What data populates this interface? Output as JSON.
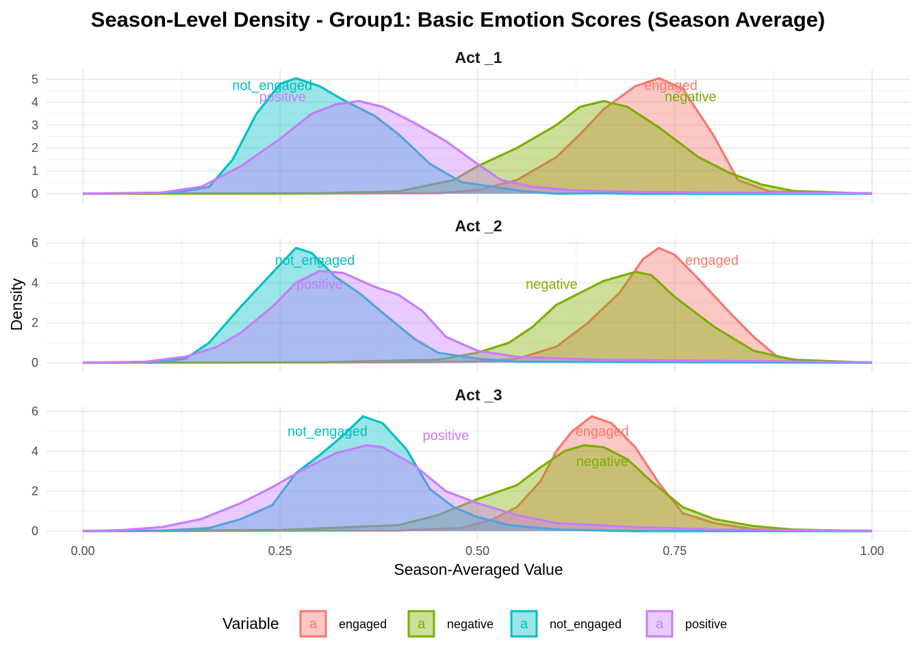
{
  "chart_data": {
    "type": "area",
    "title": "Season-Level Density - Group1: Basic Emotion Scores (Season Average)",
    "xlabel": "Season-Averaged Value",
    "ylabel": "Density",
    "xlim": [
      -0.05,
      1.05
    ],
    "x_ticks": [
      0.0,
      0.25,
      0.5,
      0.75,
      1.0
    ],
    "x_tick_labels": [
      "0.00",
      "0.25",
      "0.50",
      "0.75",
      "1.00"
    ],
    "grid": true,
    "legend": {
      "title": "Variable",
      "position": "bottom",
      "key_glyph": "a",
      "entries": [
        "engaged",
        "negative",
        "not_engaged",
        "positive"
      ]
    },
    "colors": {
      "engaged": "#F8766D",
      "negative": "#7CAE00",
      "not_engaged": "#00BFC4",
      "positive": "#C77CFF"
    },
    "panels": [
      {
        "strip": "Act _1",
        "ylim": [
          0,
          5.3
        ],
        "y_ticks": [
          0,
          1,
          2,
          3,
          4,
          5
        ],
        "y_tick_labels": [
          "0",
          "1",
          "2",
          "3",
          "4",
          "5"
        ],
        "labels": [
          {
            "series": "not_engaged",
            "text": "not_engaged",
            "x": 0.24,
            "y": 4.75
          },
          {
            "series": "positive",
            "text": "positive",
            "x": 0.253,
            "y": 4.25
          },
          {
            "series": "engaged",
            "text": "engaged",
            "x": 0.745,
            "y": 4.75
          },
          {
            "series": "negative",
            "text": "negative",
            "x": 0.77,
            "y": 4.25
          }
        ],
        "series": [
          {
            "name": "engaged",
            "points": [
              [
                0.0,
                0
              ],
              [
                0.25,
                0
              ],
              [
                0.45,
                0.02
              ],
              [
                0.5,
                0.15
              ],
              [
                0.55,
                0.6
              ],
              [
                0.6,
                1.6
              ],
              [
                0.63,
                2.6
              ],
              [
                0.66,
                3.7
              ],
              [
                0.7,
                4.7
              ],
              [
                0.73,
                5.05
              ],
              [
                0.76,
                4.6
              ],
              [
                0.8,
                2.5
              ],
              [
                0.83,
                0.6
              ],
              [
                0.87,
                0.1
              ],
              [
                0.95,
                0.01
              ],
              [
                1.0,
                0
              ]
            ]
          },
          {
            "name": "negative",
            "points": [
              [
                0.0,
                0
              ],
              [
                0.3,
                0.02
              ],
              [
                0.4,
                0.1
              ],
              [
                0.47,
                0.6
              ],
              [
                0.5,
                1.2
              ],
              [
                0.55,
                2.0
              ],
              [
                0.6,
                3.0
              ],
              [
                0.63,
                3.8
              ],
              [
                0.66,
                4.05
              ],
              [
                0.69,
                3.8
              ],
              [
                0.73,
                2.9
              ],
              [
                0.78,
                1.6
              ],
              [
                0.82,
                0.9
              ],
              [
                0.86,
                0.4
              ],
              [
                0.9,
                0.12
              ],
              [
                1.0,
                0
              ]
            ]
          },
          {
            "name": "not_engaged",
            "points": [
              [
                0.0,
                0
              ],
              [
                0.12,
                0.05
              ],
              [
                0.16,
                0.3
              ],
              [
                0.19,
                1.5
              ],
              [
                0.22,
                3.5
              ],
              [
                0.25,
                4.8
              ],
              [
                0.27,
                5.05
              ],
              [
                0.3,
                4.7
              ],
              [
                0.33,
                4.1
              ],
              [
                0.37,
                3.4
              ],
              [
                0.4,
                2.6
              ],
              [
                0.44,
                1.3
              ],
              [
                0.48,
                0.5
              ],
              [
                0.52,
                0.3
              ],
              [
                0.56,
                0.1
              ],
              [
                0.6,
                0
              ],
              [
                0.65,
                0.02
              ],
              [
                0.7,
                0
              ],
              [
                1.0,
                0
              ]
            ]
          },
          {
            "name": "positive",
            "points": [
              [
                0.0,
                0
              ],
              [
                0.1,
                0.05
              ],
              [
                0.15,
                0.3
              ],
              [
                0.2,
                1.2
              ],
              [
                0.25,
                2.4
              ],
              [
                0.29,
                3.5
              ],
              [
                0.32,
                3.9
              ],
              [
                0.35,
                4.05
              ],
              [
                0.38,
                3.8
              ],
              [
                0.42,
                3.1
              ],
              [
                0.46,
                2.3
              ],
              [
                0.5,
                1.3
              ],
              [
                0.53,
                0.6
              ],
              [
                0.57,
                0.3
              ],
              [
                0.62,
                0.15
              ],
              [
                0.7,
                0.08
              ],
              [
                0.8,
                0.05
              ],
              [
                1.0,
                0.02
              ]
            ]
          }
        ]
      },
      {
        "strip": "Act _2",
        "ylim": [
          0,
          6.0
        ],
        "y_ticks": [
          0,
          2,
          4,
          6
        ],
        "y_tick_labels": [
          "0",
          "2",
          "4",
          "6"
        ],
        "labels": [
          {
            "series": "not_engaged",
            "text": "not_engaged",
            "x": 0.294,
            "y": 5.15
          },
          {
            "series": "positive",
            "text": "positive",
            "x": 0.3,
            "y": 3.95
          },
          {
            "series": "engaged",
            "text": "engaged",
            "x": 0.797,
            "y": 5.15
          },
          {
            "series": "negative",
            "text": "negative",
            "x": 0.594,
            "y": 3.95
          }
        ],
        "series": [
          {
            "name": "engaged",
            "points": [
              [
                0.0,
                0
              ],
              [
                0.4,
                0.02
              ],
              [
                0.5,
                0.05
              ],
              [
                0.55,
                0.2
              ],
              [
                0.6,
                0.8
              ],
              [
                0.64,
                2.0
              ],
              [
                0.68,
                3.5
              ],
              [
                0.71,
                5.2
              ],
              [
                0.73,
                5.75
              ],
              [
                0.75,
                5.4
              ],
              [
                0.78,
                4.2
              ],
              [
                0.82,
                2.5
              ],
              [
                0.85,
                1.3
              ],
              [
                0.88,
                0.3
              ],
              [
                0.92,
                0.05
              ],
              [
                1.0,
                0
              ]
            ]
          },
          {
            "name": "negative",
            "points": [
              [
                0.0,
                0
              ],
              [
                0.3,
                0.02
              ],
              [
                0.45,
                0.15
              ],
              [
                0.5,
                0.5
              ],
              [
                0.54,
                1.0
              ],
              [
                0.57,
                1.8
              ],
              [
                0.6,
                2.9
              ],
              [
                0.63,
                3.5
              ],
              [
                0.66,
                4.1
              ],
              [
                0.7,
                4.55
              ],
              [
                0.72,
                4.4
              ],
              [
                0.75,
                3.3
              ],
              [
                0.8,
                1.8
              ],
              [
                0.85,
                0.6
              ],
              [
                0.9,
                0.15
              ],
              [
                1.0,
                0
              ]
            ]
          },
          {
            "name": "not_engaged",
            "points": [
              [
                0.0,
                0
              ],
              [
                0.1,
                0.05
              ],
              [
                0.13,
                0.2
              ],
              [
                0.16,
                1.0
              ],
              [
                0.2,
                2.8
              ],
              [
                0.24,
                4.5
              ],
              [
                0.27,
                5.75
              ],
              [
                0.29,
                5.5
              ],
              [
                0.32,
                4.3
              ],
              [
                0.35,
                3.5
              ],
              [
                0.38,
                2.5
              ],
              [
                0.42,
                1.2
              ],
              [
                0.45,
                0.5
              ],
              [
                0.5,
                0.2
              ],
              [
                0.55,
                0.05
              ],
              [
                1.0,
                0
              ]
            ]
          },
          {
            "name": "positive",
            "points": [
              [
                0.0,
                0
              ],
              [
                0.08,
                0.05
              ],
              [
                0.13,
                0.3
              ],
              [
                0.17,
                0.8
              ],
              [
                0.2,
                1.5
              ],
              [
                0.24,
                2.8
              ],
              [
                0.27,
                4.0
              ],
              [
                0.3,
                4.6
              ],
              [
                0.33,
                4.5
              ],
              [
                0.37,
                3.8
              ],
              [
                0.4,
                3.4
              ],
              [
                0.43,
                2.6
              ],
              [
                0.46,
                1.3
              ],
              [
                0.5,
                0.6
              ],
              [
                0.55,
                0.3
              ],
              [
                0.65,
                0.15
              ],
              [
                0.8,
                0.1
              ],
              [
                1.0,
                0.02
              ]
            ]
          }
        ]
      },
      {
        "strip": "Act _3",
        "ylim": [
          0,
          6.0
        ],
        "y_ticks": [
          0,
          2,
          4,
          6
        ],
        "y_tick_labels": [
          "0",
          "2",
          "4",
          "6"
        ],
        "labels": [
          {
            "series": "not_engaged",
            "text": "not_engaged",
            "x": 0.31,
            "y": 5.0
          },
          {
            "series": "positive",
            "text": "positive",
            "x": 0.46,
            "y": 4.8
          },
          {
            "series": "engaged",
            "text": "engaged",
            "x": 0.658,
            "y": 5.0
          },
          {
            "series": "negative",
            "text": "negative",
            "x": 0.658,
            "y": 3.5
          }
        ],
        "series": [
          {
            "name": "engaged",
            "points": [
              [
                0.0,
                0
              ],
              [
                0.4,
                0.03
              ],
              [
                0.48,
                0.15
              ],
              [
                0.52,
                0.6
              ],
              [
                0.55,
                1.2
              ],
              [
                0.58,
                2.5
              ],
              [
                0.6,
                4.0
              ],
              [
                0.62,
                5.0
              ],
              [
                0.645,
                5.75
              ],
              [
                0.67,
                5.4
              ],
              [
                0.7,
                4.2
              ],
              [
                0.73,
                2.4
              ],
              [
                0.76,
                0.9
              ],
              [
                0.8,
                0.4
              ],
              [
                0.85,
                0.1
              ],
              [
                0.9,
                0.02
              ],
              [
                1.0,
                0
              ]
            ]
          },
          {
            "name": "negative",
            "points": [
              [
                0.0,
                0
              ],
              [
                0.25,
                0.05
              ],
              [
                0.4,
                0.3
              ],
              [
                0.45,
                0.8
              ],
              [
                0.5,
                1.6
              ],
              [
                0.55,
                2.3
              ],
              [
                0.58,
                3.2
              ],
              [
                0.61,
                4.0
              ],
              [
                0.635,
                4.3
              ],
              [
                0.66,
                4.2
              ],
              [
                0.69,
                3.6
              ],
              [
                0.72,
                2.5
              ],
              [
                0.76,
                1.2
              ],
              [
                0.8,
                0.6
              ],
              [
                0.85,
                0.25
              ],
              [
                0.9,
                0.08
              ],
              [
                1.0,
                0
              ]
            ]
          },
          {
            "name": "not_engaged",
            "points": [
              [
                0.0,
                0
              ],
              [
                0.1,
                0.02
              ],
              [
                0.16,
                0.15
              ],
              [
                0.2,
                0.6
              ],
              [
                0.24,
                1.3
              ],
              [
                0.27,
                2.9
              ],
              [
                0.3,
                3.8
              ],
              [
                0.33,
                4.8
              ],
              [
                0.355,
                5.75
              ],
              [
                0.38,
                5.4
              ],
              [
                0.41,
                4.1
              ],
              [
                0.44,
                2.1
              ],
              [
                0.47,
                1.2
              ],
              [
                0.5,
                0.7
              ],
              [
                0.54,
                0.3
              ],
              [
                0.6,
                0.08
              ],
              [
                0.7,
                0
              ],
              [
                1.0,
                0
              ]
            ]
          },
          {
            "name": "positive",
            "points": [
              [
                0.0,
                0
              ],
              [
                0.05,
                0.05
              ],
              [
                0.1,
                0.2
              ],
              [
                0.15,
                0.6
              ],
              [
                0.2,
                1.4
              ],
              [
                0.24,
                2.2
              ],
              [
                0.28,
                3.1
              ],
              [
                0.32,
                3.9
              ],
              [
                0.36,
                4.3
              ],
              [
                0.38,
                4.2
              ],
              [
                0.42,
                3.3
              ],
              [
                0.46,
                2.0
              ],
              [
                0.5,
                1.4
              ],
              [
                0.55,
                0.8
              ],
              [
                0.6,
                0.4
              ],
              [
                0.7,
                0.2
              ],
              [
                0.8,
                0.08
              ],
              [
                1.0,
                0.02
              ]
            ]
          }
        ]
      }
    ]
  }
}
